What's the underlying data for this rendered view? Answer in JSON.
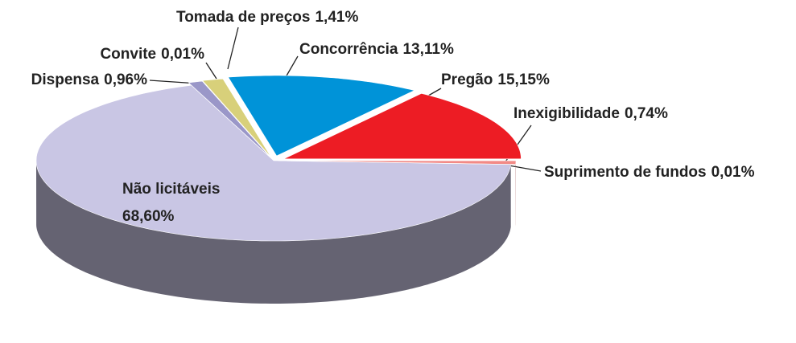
{
  "chart_data": {
    "type": "pie",
    "categories": [
      "Não licitáveis",
      "Dispensa",
      "Convite",
      "Tomada de preços",
      "Concorrência",
      "Pregão",
      "Inexigibilidade",
      "Suprimento de fundos"
    ],
    "values": [
      68.6,
      0.96,
      0.01,
      1.41,
      13.11,
      15.15,
      0.74,
      0.01
    ],
    "value_labels": [
      "68,60%",
      "0,96%",
      "0,01%",
      "1,41%",
      "13,11%",
      "15,15%",
      "0,74%",
      "0,01%"
    ],
    "colors": [
      "#c9c6e4",
      "#9a97c8",
      "#7a1e3f",
      "#d8d07a",
      "#0093d8",
      "#ed1c24",
      "#f28a86",
      "#1a237e"
    ]
  }
}
